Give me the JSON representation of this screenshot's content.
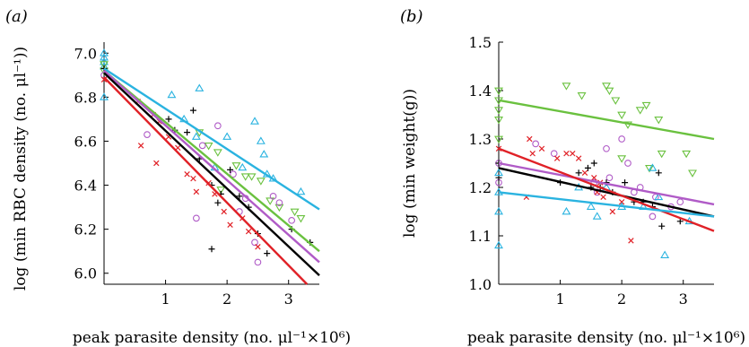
{
  "chart_data": [
    {
      "type": "scatter",
      "panel_label": "(a)",
      "xlabel": "peak parasite density (no. μl⁻¹×10⁶)",
      "ylabel": "log (min RBC density (no. μl⁻¹))",
      "xlim": [
        0,
        3.5
      ],
      "ylim": [
        5.95,
        7.05
      ],
      "x_ticks": [
        1,
        2,
        3
      ],
      "y_ticks": [
        6.0,
        6.2,
        6.4,
        6.6,
        6.8,
        7.0
      ],
      "y_tick_labels": [
        "6.0",
        "6.2",
        "6.4",
        "6.6",
        "6.8",
        "7.0"
      ],
      "grid": false,
      "series": [
        {
          "color": "#2ab3e0",
          "marker": "triangle-up",
          "line": {
            "x1": 0,
            "y1": 6.93,
            "x2": 3.5,
            "y2": 6.29
          },
          "points": [
            [
              0,
              7.0
            ],
            [
              0,
              6.98
            ],
            [
              0,
              6.96
            ],
            [
              0,
              6.94
            ],
            [
              0,
              6.8
            ],
            [
              1.1,
              6.81
            ],
            [
              1.55,
              6.84
            ],
            [
              1.3,
              6.7
            ],
            [
              1.5,
              6.62
            ],
            [
              1.8,
              6.48
            ],
            [
              2.0,
              6.62
            ],
            [
              2.25,
              6.48
            ],
            [
              2.45,
              6.69
            ],
            [
              2.55,
              6.6
            ],
            [
              2.6,
              6.54
            ],
            [
              2.65,
              6.45
            ],
            [
              2.75,
              6.43
            ],
            [
              3.2,
              6.37
            ]
          ]
        },
        {
          "color": "#6ac13f",
          "marker": "triangle-down",
          "line": {
            "x1": 0,
            "y1": 6.92,
            "x2": 3.5,
            "y2": 6.1
          },
          "points": [
            [
              0,
              6.95
            ],
            [
              0,
              6.92
            ],
            [
              1.55,
              6.64
            ],
            [
              1.7,
              6.58
            ],
            [
              1.85,
              6.55
            ],
            [
              2.15,
              6.49
            ],
            [
              2.3,
              6.44
            ],
            [
              2.4,
              6.44
            ],
            [
              2.55,
              6.42
            ],
            [
              2.7,
              6.33
            ],
            [
              2.85,
              6.3
            ],
            [
              3.1,
              6.28
            ],
            [
              3.2,
              6.25
            ],
            [
              1.9,
              6.38
            ]
          ]
        },
        {
          "color": "#b05bc7",
          "marker": "circle",
          "line": {
            "x1": 0,
            "y1": 6.92,
            "x2": 3.5,
            "y2": 6.05
          },
          "points": [
            [
              0,
              6.9
            ],
            [
              0.7,
              6.63
            ],
            [
              1.5,
              6.25
            ],
            [
              1.6,
              6.58
            ],
            [
              1.85,
              6.67
            ],
            [
              2.1,
              6.45
            ],
            [
              2.3,
              6.34
            ],
            [
              2.45,
              6.14
            ],
            [
              2.5,
              6.05
            ],
            [
              2.75,
              6.35
            ],
            [
              2.85,
              6.32
            ],
            [
              3.05,
              6.24
            ],
            [
              2.2,
              6.28
            ]
          ]
        },
        {
          "color": "#000000",
          "marker": "plus",
          "line": {
            "x1": 0,
            "y1": 6.91,
            "x2": 3.5,
            "y2": 5.99
          },
          "points": [
            [
              0,
              6.93
            ],
            [
              1.05,
              6.7
            ],
            [
              1.15,
              6.65
            ],
            [
              1.35,
              6.64
            ],
            [
              1.45,
              6.74
            ],
            [
              1.55,
              6.52
            ],
            [
              1.75,
              6.4
            ],
            [
              1.85,
              6.32
            ],
            [
              1.9,
              6.36
            ],
            [
              2.05,
              6.47
            ],
            [
              2.2,
              6.35
            ],
            [
              2.35,
              6.3
            ],
            [
              2.5,
              6.18
            ],
            [
              2.65,
              6.09
            ],
            [
              3.05,
              6.2
            ],
            [
              3.35,
              6.14
            ],
            [
              1.75,
              6.11
            ]
          ]
        },
        {
          "color": "#e02127",
          "marker": "x",
          "line": {
            "x1": 0,
            "y1": 6.89,
            "x2": 3.3,
            "y2": 5.95
          },
          "points": [
            [
              0,
              6.88
            ],
            [
              0.55,
              6.78
            ],
            [
              0.8,
              6.72
            ],
            [
              0.9,
              6.69
            ],
            [
              1.05,
              6.62
            ],
            [
              1.2,
              6.57
            ],
            [
              1.35,
              6.45
            ],
            [
              1.45,
              6.43
            ],
            [
              1.5,
              6.37
            ],
            [
              1.7,
              6.41
            ],
            [
              1.8,
              6.36
            ],
            [
              2.05,
              6.22
            ],
            [
              2.25,
              6.25
            ],
            [
              2.35,
              6.19
            ],
            [
              2.5,
              6.12
            ],
            [
              0.6,
              6.58
            ],
            [
              0.85,
              6.5
            ],
            [
              1.95,
              6.28
            ]
          ]
        }
      ]
    },
    {
      "type": "scatter",
      "panel_label": "(b)",
      "xlabel": "peak parasite density (no. μl⁻¹×10⁶)",
      "ylabel": "log (min weight(g))",
      "xlim": [
        0,
        3.5
      ],
      "ylim": [
        1.0,
        1.5
      ],
      "x_ticks": [
        1,
        2,
        3
      ],
      "y_ticks": [
        1.0,
        1.1,
        1.2,
        1.3,
        1.4,
        1.5
      ],
      "y_tick_labels": [
        "1.0",
        "1.1",
        "1.2",
        "1.3",
        "1.4",
        "1.5"
      ],
      "grid": false,
      "series": [
        {
          "color": "#6ac13f",
          "marker": "triangle-down",
          "line": {
            "x1": 0,
            "y1": 1.38,
            "x2": 3.5,
            "y2": 1.3
          },
          "points": [
            [
              0,
              1.4
            ],
            [
              0,
              1.38
            ],
            [
              0,
              1.36
            ],
            [
              0,
              1.34
            ],
            [
              0,
              1.3
            ],
            [
              1.1,
              1.41
            ],
            [
              1.35,
              1.39
            ],
            [
              1.75,
              1.41
            ],
            [
              1.8,
              1.4
            ],
            [
              1.9,
              1.38
            ],
            [
              2.0,
              1.35
            ],
            [
              2.1,
              1.33
            ],
            [
              2.3,
              1.36
            ],
            [
              2.4,
              1.37
            ],
            [
              2.6,
              1.34
            ],
            [
              2.65,
              1.27
            ],
            [
              3.05,
              1.27
            ],
            [
              3.15,
              1.23
            ],
            [
              2.0,
              1.26
            ],
            [
              2.45,
              1.24
            ]
          ]
        },
        {
          "color": "#b05bc7",
          "marker": "circle",
          "line": {
            "x1": 0,
            "y1": 1.25,
            "x2": 3.5,
            "y2": 1.165
          },
          "points": [
            [
              0,
              1.25
            ],
            [
              0,
              1.21
            ],
            [
              0.6,
              1.29
            ],
            [
              0.9,
              1.27
            ],
            [
              1.55,
              1.21
            ],
            [
              1.75,
              1.28
            ],
            [
              1.8,
              1.22
            ],
            [
              2.0,
              1.3
            ],
            [
              2.1,
              1.25
            ],
            [
              2.2,
              1.19
            ],
            [
              2.3,
              1.2
            ],
            [
              2.5,
              1.14
            ],
            [
              2.55,
              1.18
            ],
            [
              2.8,
              1.16
            ],
            [
              2.95,
              1.17
            ],
            [
              1.6,
              1.19
            ]
          ]
        },
        {
          "color": "#000000",
          "marker": "plus",
          "line": {
            "x1": 0,
            "y1": 1.24,
            "x2": 3.5,
            "y2": 1.14
          },
          "points": [
            [
              0,
              1.25
            ],
            [
              0,
              1.22
            ],
            [
              1.0,
              1.21
            ],
            [
              1.3,
              1.23
            ],
            [
              1.45,
              1.24
            ],
            [
              1.55,
              1.25
            ],
            [
              1.65,
              1.2
            ],
            [
              1.75,
              1.21
            ],
            [
              1.85,
              1.19
            ],
            [
              2.05,
              1.21
            ],
            [
              2.2,
              1.17
            ],
            [
              2.35,
              1.17
            ],
            [
              2.5,
              1.16
            ],
            [
              2.6,
              1.23
            ],
            [
              2.65,
              1.12
            ],
            [
              2.95,
              1.13
            ],
            [
              1.5,
              1.2
            ]
          ]
        },
        {
          "color": "#e02127",
          "marker": "x",
          "line": {
            "x1": 0,
            "y1": 1.28,
            "x2": 3.5,
            "y2": 1.11
          },
          "points": [
            [
              0,
              1.28
            ],
            [
              0.5,
              1.3
            ],
            [
              0.55,
              1.27
            ],
            [
              0.7,
              1.28
            ],
            [
              0.95,
              1.26
            ],
            [
              1.1,
              1.27
            ],
            [
              1.2,
              1.27
            ],
            [
              1.3,
              1.26
            ],
            [
              1.4,
              1.23
            ],
            [
              1.55,
              1.22
            ],
            [
              1.6,
              1.19
            ],
            [
              1.65,
              1.21
            ],
            [
              1.7,
              1.18
            ],
            [
              1.85,
              1.15
            ],
            [
              2.0,
              1.17
            ],
            [
              2.15,
              1.09
            ],
            [
              0.45,
              1.18
            ]
          ]
        },
        {
          "color": "#2ab3e0",
          "marker": "triangle-up",
          "line": {
            "x1": 0,
            "y1": 1.19,
            "x2": 3.5,
            "y2": 1.14
          },
          "points": [
            [
              0,
              1.23
            ],
            [
              0,
              1.19
            ],
            [
              0,
              1.15
            ],
            [
              0,
              1.08
            ],
            [
              1.3,
              1.2
            ],
            [
              1.5,
              1.16
            ],
            [
              1.6,
              1.14
            ],
            [
              1.75,
              1.2
            ],
            [
              2.0,
              1.16
            ],
            [
              2.35,
              1.16
            ],
            [
              2.5,
              1.24
            ],
            [
              2.6,
              1.18
            ],
            [
              2.7,
              1.06
            ],
            [
              3.1,
              1.13
            ],
            [
              1.1,
              1.15
            ]
          ]
        }
      ]
    }
  ]
}
